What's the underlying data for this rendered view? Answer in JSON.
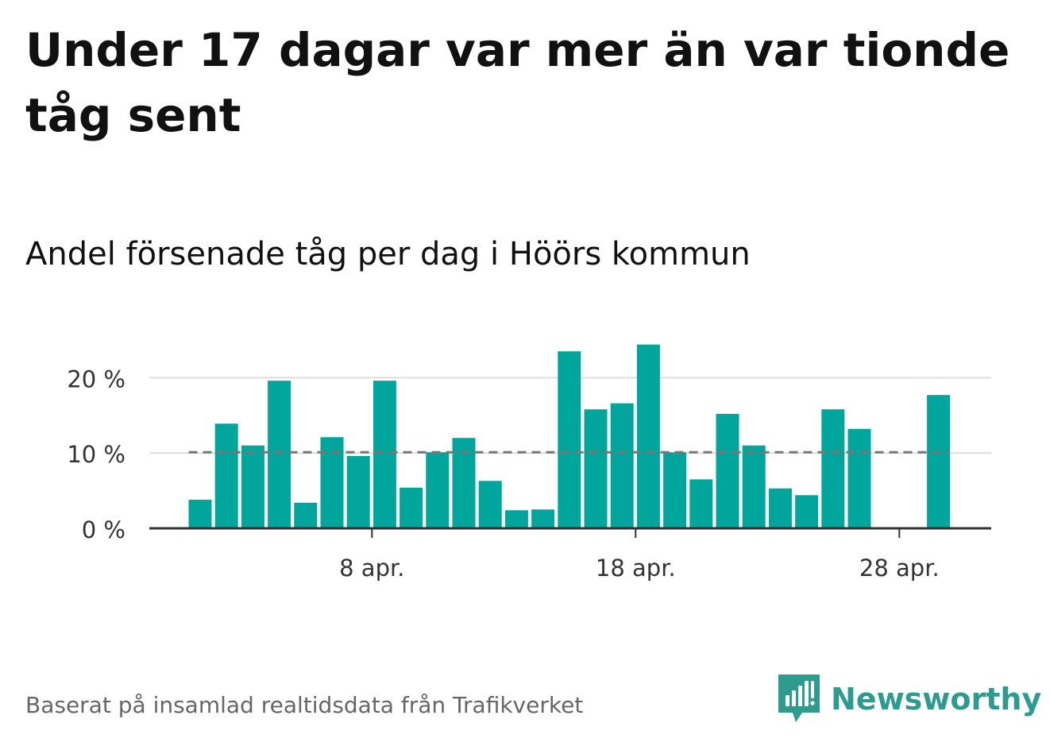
{
  "title": "Under 17 dagar var mer än var tionde tåg sent",
  "subtitle": "Andel försenade tåg per dag i Höörs kommun",
  "footer": {
    "source": "Baserat på insamlad realtidsdata från Trafikverket",
    "brand": "Newsworthy"
  },
  "colors": {
    "bar": "#00a69c",
    "average_line": "#777777",
    "grid": "#dddddd",
    "axis": "#333333",
    "brand": "#2e9b8f"
  },
  "icons": {
    "brand_logo": "newsworthy-logo-icon"
  },
  "chart_data": {
    "type": "bar",
    "x": [
      "1 apr.",
      "2 apr.",
      "3 apr.",
      "4 apr.",
      "5 apr.",
      "6 apr.",
      "7 apr.",
      "8 apr.",
      "9 apr.",
      "10 apr.",
      "11 apr.",
      "12 apr.",
      "13 apr.",
      "14 apr.",
      "15 apr.",
      "16 apr.",
      "17 apr.",
      "18 apr.",
      "19 apr.",
      "20 apr.",
      "21 apr.",
      "22 apr.",
      "23 apr.",
      "24 apr.",
      "25 apr.",
      "26 apr.",
      "27 apr.",
      "28 apr.",
      "29 apr."
    ],
    "values": [
      3.8,
      13.9,
      11.0,
      19.6,
      3.4,
      12.1,
      9.6,
      19.6,
      5.4,
      10.1,
      12.0,
      6.3,
      2.4,
      2.5,
      23.5,
      15.8,
      16.6,
      24.4,
      10.1,
      6.5,
      15.2,
      11.0,
      5.3,
      4.4,
      15.8,
      13.2,
      0,
      0,
      17.7
    ],
    "average": 10.1,
    "ylim": [
      0,
      25
    ],
    "yticks": [
      {
        "value": 0,
        "label": "0 %"
      },
      {
        "value": 10,
        "label": "10 %"
      },
      {
        "value": 20,
        "label": "20 %"
      }
    ],
    "xticks": [
      {
        "index": 7,
        "label": "8 apr."
      },
      {
        "index": 17,
        "label": "18 apr."
      },
      {
        "index": 27,
        "label": "28 apr."
      }
    ],
    "grid": true,
    "legend": "none"
  }
}
